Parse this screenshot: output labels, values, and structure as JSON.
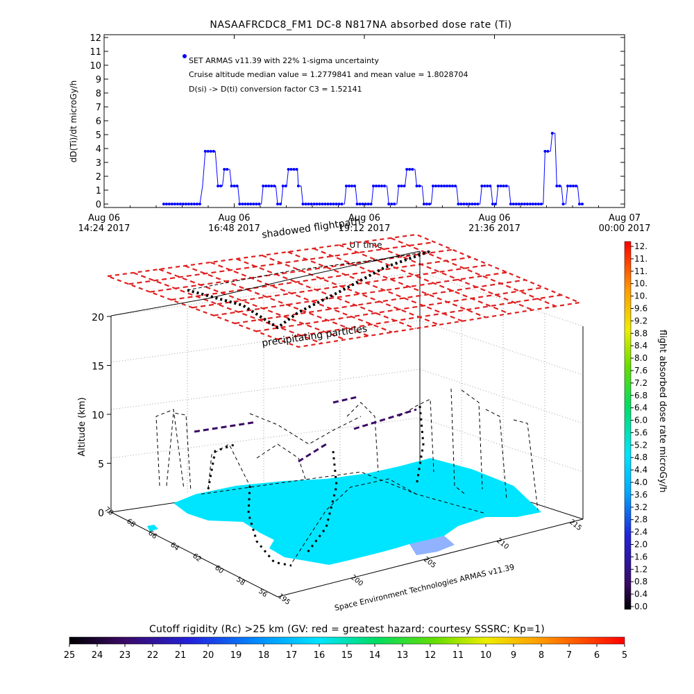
{
  "colors": {
    "series": "#0000ff",
    "axis": "#000000",
    "ice": "#00e5ff",
    "grid": "#9e9e9e",
    "mesh": "#e02020",
    "track_low": "#3a0a66"
  },
  "top_chart": {
    "title": "NASAAFRCDC8_FM1 DC-8    N817NA absorbed dose rate (Ti)",
    "ylabel": "dD(Ti)/dt microGy/h",
    "xlabel": "UT time",
    "legend": [
      "SET ARMAS v11.39 with 22% 1-sigma uncertainty",
      "Cruise altitude median value = 1.2779841 and mean value = 1.8028704",
      "D(si) -> D(ti) conversion factor C3 = 1.52141"
    ],
    "x_ticks": [
      {
        "line1": "Aug 06",
        "line2": "14:24 2017"
      },
      {
        "line1": "Aug 06",
        "line2": "16:48 2017"
      },
      {
        "line1": "Aug 06",
        "line2": "19:12 2017"
      },
      {
        "line1": "Aug 06",
        "line2": "21:36 2017"
      },
      {
        "line1": "Aug 07",
        "line2": "00:00 2017"
      }
    ],
    "y_ticks": [
      "0",
      "1",
      "2",
      "3",
      "4",
      "5",
      "6",
      "7",
      "8",
      "9",
      "10",
      "11",
      "12"
    ]
  },
  "chart_data": {
    "type": "line",
    "x_unit": "UT time (Aug 06 2017)",
    "xlim": [
      "14:24",
      "00:00"
    ],
    "ylim": [
      0,
      12
    ],
    "y_unit": "microGy/h",
    "series": [
      {
        "points": [
          [
            "15:30",
            0.0
          ],
          [
            "16:10",
            0.0
          ],
          [
            "16:13",
            1.3
          ],
          [
            "16:16",
            3.8
          ],
          [
            "16:27",
            3.8
          ],
          [
            "16:30",
            1.3
          ],
          [
            "16:35",
            1.3
          ],
          [
            "16:37",
            2.5
          ],
          [
            "16:43",
            2.5
          ],
          [
            "16:45",
            1.3
          ],
          [
            "16:52",
            1.3
          ],
          [
            "16:54",
            0.0
          ],
          [
            "17:18",
            0.0
          ],
          [
            "17:20",
            1.3
          ],
          [
            "17:34",
            1.3
          ],
          [
            "17:36",
            0.0
          ],
          [
            "17:40",
            0.0
          ],
          [
            "17:42",
            1.3
          ],
          [
            "17:46",
            1.3
          ],
          [
            "17:48",
            2.5
          ],
          [
            "17:58",
            2.5
          ],
          [
            "17:59",
            1.3
          ],
          [
            "18:02",
            1.3
          ],
          [
            "18:04",
            0.0
          ],
          [
            "18:50",
            0.0
          ],
          [
            "18:52",
            1.3
          ],
          [
            "19:02",
            1.3
          ],
          [
            "19:04",
            0.0
          ],
          [
            "19:20",
            0.0
          ],
          [
            "19:22",
            1.3
          ],
          [
            "19:37",
            1.3
          ],
          [
            "19:39",
            0.0
          ],
          [
            "19:48",
            0.0
          ],
          [
            "19:50",
            1.3
          ],
          [
            "19:57",
            1.3
          ],
          [
            "19:59",
            2.5
          ],
          [
            "20:08",
            2.5
          ],
          [
            "20:10",
            1.3
          ],
          [
            "20:16",
            1.3
          ],
          [
            "20:18",
            0.0
          ],
          [
            "20:26",
            0.0
          ],
          [
            "20:28",
            1.3
          ],
          [
            "20:54",
            1.3
          ],
          [
            "20:56",
            0.0
          ],
          [
            "21:20",
            0.0
          ],
          [
            "21:22",
            1.3
          ],
          [
            "21:32",
            1.3
          ],
          [
            "21:34",
            0.0
          ],
          [
            "21:38",
            0.0
          ],
          [
            "21:40",
            1.3
          ],
          [
            "21:52",
            1.3
          ],
          [
            "21:54",
            0.0
          ],
          [
            "22:30",
            0.0
          ],
          [
            "22:32",
            3.8
          ],
          [
            "22:38",
            3.8
          ],
          [
            "22:40",
            5.1
          ],
          [
            "22:43",
            5.1
          ],
          [
            "22:45",
            1.3
          ],
          [
            "22:50",
            1.3
          ],
          [
            "22:52",
            0.0
          ],
          [
            "22:55",
            0.0
          ],
          [
            "22:57",
            1.3
          ],
          [
            "23:08",
            1.3
          ],
          [
            "23:10",
            0.0
          ],
          [
            "23:15",
            0.0
          ]
        ]
      }
    ]
  },
  "scene": {
    "zlabel": "Altitude (km)",
    "z_ticks": [
      "0",
      "5",
      "10",
      "15",
      "20"
    ],
    "lat_ticks": [
      "70",
      "68",
      "66",
      "64",
      "62",
      "60",
      "58",
      "56"
    ],
    "lon_ticks": [
      "195",
      "200",
      "205",
      "210",
      "215"
    ],
    "annotations": [
      "shadowed flightpath",
      "precipitating particles"
    ],
    "credit": "Space Environment Technologies ARMAS v11.39"
  },
  "right_colorbar": {
    "label": "flight absorbed dose rate microGy/h",
    "ticks": [
      "12.",
      "11.",
      "11.",
      "10.",
      "10.",
      "9.6",
      "9.2",
      "8.8",
      "8.4",
      "8.0",
      "7.6",
      "7.2",
      "6.8",
      "6.4",
      "6.0",
      "5.6",
      "5.2",
      "4.8",
      "4.4",
      "4.0",
      "3.6",
      "3.2",
      "2.8",
      "2.4",
      "2.0",
      "1.6",
      "1.2",
      "0.8",
      "0.4",
      "0.0"
    ]
  },
  "bottom_colorbar": {
    "label": "Cutoff rigidity (Rc) >25 km (GV: red = greatest hazard; courtesy SSSRC; Kp=1)",
    "ticks": [
      "25",
      "24",
      "23",
      "22",
      "21",
      "20",
      "19",
      "18",
      "17",
      "16",
      "15",
      "14",
      "13",
      "12",
      "11",
      "10",
      "9",
      "8",
      "7",
      "6",
      "5"
    ]
  }
}
